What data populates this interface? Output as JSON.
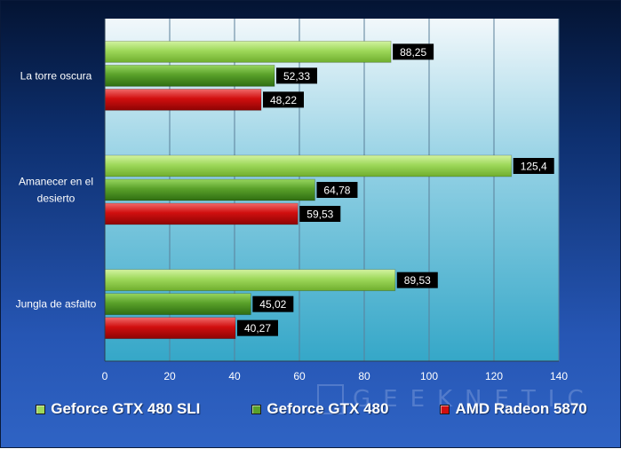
{
  "chart_data": {
    "type": "bar",
    "orientation": "horizontal",
    "categories": [
      "La torre oscura",
      "Amanecer en el desierto",
      "Jungla de asfalto"
    ],
    "series": [
      {
        "name": "Geforce GTX 480 SLI",
        "values": [
          88.25,
          125.4,
          89.53
        ],
        "labels": [
          "88,25",
          "125,4",
          "89,53"
        ],
        "color": "#9ed85a"
      },
      {
        "name": "Geforce GTX 480",
        "values": [
          52.33,
          64.78,
          45.02
        ],
        "labels": [
          "52,33",
          "64,78",
          "45,02"
        ],
        "color": "#5aa12a"
      },
      {
        "name": "AMD Radeon 5870",
        "values": [
          48.22,
          59.53,
          40.27
        ],
        "labels": [
          "48,22",
          "59,53",
          "40,27"
        ],
        "color": "#d10f0f"
      }
    ],
    "xlim": [
      0,
      140
    ],
    "xticks": [
      0,
      20,
      40,
      60,
      80,
      100,
      120,
      140
    ],
    "grid": true,
    "legend_position": "bottom"
  },
  "legend": {
    "items": [
      {
        "label": "Geforce GTX 480 SLI",
        "color": "#9ed85a"
      },
      {
        "label": "Geforce GTX 480",
        "color": "#5aa12a"
      },
      {
        "label": "AMD Radeon 5870",
        "color": "#d10f0f"
      }
    ]
  },
  "watermark": {
    "text": "GEEKNETIC"
  }
}
